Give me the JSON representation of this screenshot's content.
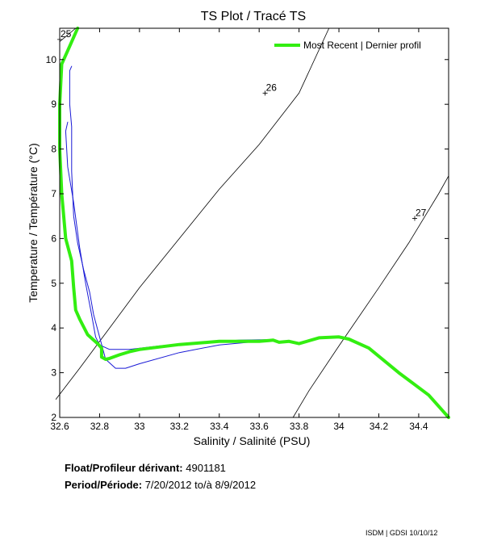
{
  "chart_data": {
    "type": "line",
    "title": "TS Plot / Tracé TS",
    "xlabel": "Salinity / Salinité (PSU)",
    "ylabel": "Temperature / Température (°C)",
    "xlim": [
      32.6,
      34.55
    ],
    "ylim": [
      2.0,
      10.7
    ],
    "xticks": [
      "32.6",
      "32.8",
      "33",
      "33.2",
      "33.4",
      "33.6",
      "33.8",
      "34",
      "34.2",
      "34.4"
    ],
    "yticks": [
      "2",
      "3",
      "4",
      "5",
      "6",
      "7",
      "8",
      "9",
      "10"
    ],
    "grid": false,
    "legend": {
      "position": "top-right",
      "entries": [
        "Most Recent | Dernier profil"
      ]
    },
    "density_contours": [
      {
        "label": "25",
        "label_x": 32.6,
        "label_y": 10.45,
        "x": [
          32.6,
          32.68
        ],
        "y": [
          10.4,
          10.7
        ]
      },
      {
        "label": "26",
        "label_x": 33.63,
        "label_y": 9.25,
        "x": [
          32.58,
          32.7,
          32.85,
          33.0,
          33.2,
          33.4,
          33.6,
          33.8,
          33.95
        ],
        "y": [
          2.4,
          3.1,
          4.0,
          4.9,
          6.0,
          7.1,
          8.1,
          9.25,
          10.7
        ]
      },
      {
        "label": "27",
        "label_x": 34.38,
        "label_y": 6.45,
        "x": [
          33.77,
          33.85,
          34.0,
          34.2,
          34.35,
          34.5,
          34.55
        ],
        "y": [
          2.0,
          2.6,
          3.6,
          4.9,
          5.9,
          7.0,
          7.4
        ]
      }
    ],
    "series": [
      {
        "name": "Most Recent | Dernier profil",
        "color": "#33ee11",
        "x": [
          32.69,
          32.65,
          32.61,
          32.6,
          32.6,
          32.61,
          32.63,
          32.66,
          32.67,
          32.68,
          32.7,
          32.74,
          32.79,
          32.81,
          32.81,
          32.83,
          32.85,
          32.9,
          32.95,
          33.0,
          33.2,
          33.4,
          33.6,
          33.65,
          33.67,
          33.7,
          33.75,
          33.8,
          33.9,
          34.0,
          34.05,
          34.15,
          34.3,
          34.45,
          34.55
        ],
        "y": [
          10.7,
          10.3,
          9.9,
          9.0,
          8.0,
          7.0,
          6.0,
          5.5,
          4.9,
          4.4,
          4.2,
          3.85,
          3.65,
          3.55,
          3.35,
          3.3,
          3.32,
          3.4,
          3.47,
          3.52,
          3.63,
          3.7,
          3.7,
          3.72,
          3.73,
          3.68,
          3.7,
          3.65,
          3.78,
          3.8,
          3.75,
          3.55,
          3.0,
          2.5,
          2.0
        ]
      },
      {
        "name": "",
        "color": "#1a1ad6",
        "x": [
          32.66,
          32.65,
          32.65,
          32.66,
          32.66,
          32.67,
          32.69,
          32.72,
          32.75,
          32.77,
          32.8,
          32.83,
          32.88,
          32.93,
          33.0,
          33.2,
          33.4,
          33.6,
          33.65
        ],
        "y": [
          9.85,
          9.75,
          9.0,
          8.5,
          7.5,
          6.5,
          5.9,
          5.3,
          4.8,
          4.3,
          3.8,
          3.3,
          3.1,
          3.1,
          3.2,
          3.45,
          3.62,
          3.7,
          3.72
        ]
      },
      {
        "name": "",
        "color": "#1a1ad6",
        "x": [
          32.64,
          32.63,
          32.64,
          32.67,
          32.7,
          32.73,
          32.76,
          32.78,
          32.8,
          32.85,
          32.95,
          33.1,
          33.3,
          33.5,
          33.65
        ],
        "y": [
          8.6,
          8.4,
          7.6,
          6.8,
          5.8,
          5.0,
          4.3,
          3.8,
          3.62,
          3.52,
          3.52,
          3.6,
          3.68,
          3.73,
          3.74
        ]
      }
    ]
  },
  "info": {
    "float_label": "Float/Profileur dérivant:",
    "float_value": "4901181",
    "period_label": "Period/Période:",
    "period_from": "7/20/2012",
    "period_sep": "to/à",
    "period_to": "8/9/2012"
  },
  "footer": "ISDM | GDSI  10/10/12"
}
